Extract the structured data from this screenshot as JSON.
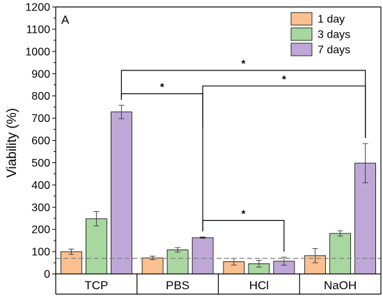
{
  "chart_data": {
    "type": "bar",
    "panel_label": "A",
    "ylabel": "Viability (%)",
    "ylim": [
      0,
      1200
    ],
    "yticks": [
      0,
      100,
      200,
      300,
      400,
      500,
      600,
      700,
      800,
      900,
      1000,
      1100,
      1200
    ],
    "categories": [
      "TCP",
      "PBS",
      "HCl",
      "NaOH"
    ],
    "series": [
      {
        "name": "1 day",
        "color": "#FAC090",
        "values": [
          100,
          72,
          55,
          82
        ],
        "errors": [
          12,
          8,
          15,
          32
        ]
      },
      {
        "name": "3 days",
        "color": "#A8D8A0",
        "values": [
          248,
          108,
          46,
          182
        ],
        "errors": [
          32,
          10,
          15,
          12
        ]
      },
      {
        "name": "7 days",
        "color": "#BFA8D8",
        "values": [
          728,
          163,
          57,
          498
        ],
        "errors": [
          30,
          3,
          18,
          88
        ]
      }
    ],
    "reference_line": {
      "value": 70,
      "style": "dashed",
      "color": "#808080"
    },
    "legend_position": "top-right",
    "significance": [
      {
        "label": "*",
        "from_category": "TCP",
        "to_category": "NaOH",
        "series": "7 days"
      },
      {
        "label": "*",
        "from_category": "PBS",
        "to_category": "NaOH",
        "series": "7 days"
      },
      {
        "label": "*",
        "from_category": "TCP",
        "to_category": "PBS",
        "series": "7 days"
      },
      {
        "label": "*",
        "from_category": "PBS",
        "to_category": "HCl",
        "series": "7 days"
      }
    ]
  }
}
